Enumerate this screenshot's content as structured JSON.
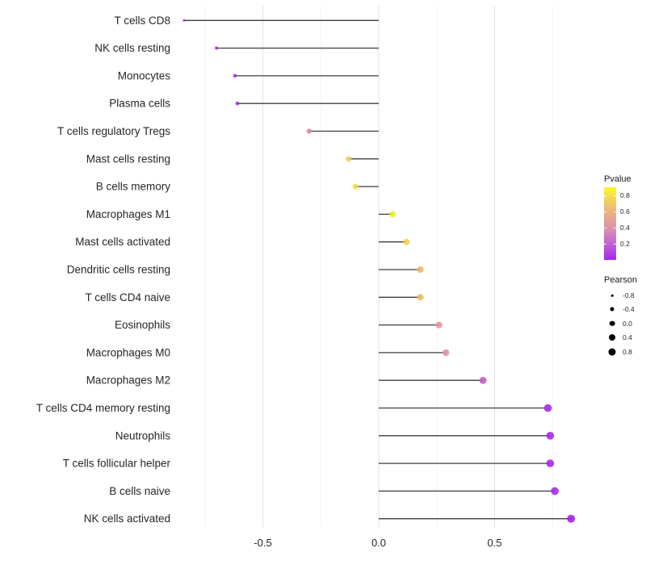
{
  "chart_data": {
    "type": "scatter",
    "subtype": "lollipop",
    "orientation": "horizontal",
    "title": "",
    "xlabel": "",
    "ylabel": "",
    "xlim": [
      -0.875,
      0.89
    ],
    "x_major_ticks": [
      -0.5,
      0.0,
      0.5
    ],
    "x_tick_labels": [
      "-0.5",
      "0.0",
      "0.5"
    ],
    "x_minor_gridlines": [
      -0.75,
      -0.25,
      0.25,
      0.75
    ],
    "grid": "vertical light-gray gridlines on white, no axis lines, no tick marks",
    "baseline_x": 0.0,
    "points": [
      {
        "label": "T cells CD8",
        "pearson": -0.84,
        "pvalue": 0.03,
        "color": "#9327de"
      },
      {
        "label": "NK cells resting",
        "pearson": -0.7,
        "pvalue": 0.05,
        "color": "#9a2be2"
      },
      {
        "label": "Monocytes",
        "pearson": -0.62,
        "pvalue": 0.06,
        "color": "#9c2ee2"
      },
      {
        "label": "Plasma cells",
        "pearson": -0.61,
        "pvalue": 0.06,
        "color": "#9c2ee2"
      },
      {
        "label": "T cells regulatory  Tregs",
        "pearson": -0.3,
        "pvalue": 0.42,
        "color": "#d9879f"
      },
      {
        "label": "Mast cells resting",
        "pearson": -0.13,
        "pvalue": 0.68,
        "color": "#f0cc55"
      },
      {
        "label": "B cells memory",
        "pearson": -0.1,
        "pvalue": 0.72,
        "color": "#f3d64c"
      },
      {
        "label": "Macrophages M1",
        "pearson": 0.06,
        "pvalue": 0.88,
        "color": "#f2ec16"
      },
      {
        "label": "Mast cells activated",
        "pearson": 0.12,
        "pvalue": 0.7,
        "color": "#f0d14b"
      },
      {
        "label": "Dendritic cells resting",
        "pearson": 0.18,
        "pvalue": 0.58,
        "color": "#ecb763"
      },
      {
        "label": "T cells CD4 naive",
        "pearson": 0.18,
        "pvalue": 0.58,
        "color": "#ecb763"
      },
      {
        "label": "Eosinophils",
        "pearson": 0.26,
        "pvalue": 0.45,
        "color": "#e2939b"
      },
      {
        "label": "Macrophages M0",
        "pearson": 0.29,
        "pvalue": 0.44,
        "color": "#e08f9f"
      },
      {
        "label": "Macrophages M2",
        "pearson": 0.45,
        "pvalue": 0.22,
        "color": "#c45bc8"
      },
      {
        "label": "T cells CD4 memory resting",
        "pearson": 0.73,
        "pvalue": 0.02,
        "color": "#a523ec"
      },
      {
        "label": "Neutrophils",
        "pearson": 0.74,
        "pvalue": 0.02,
        "color": "#a523ec"
      },
      {
        "label": "T cells follicular helper",
        "pearson": 0.74,
        "pvalue": 0.02,
        "color": "#a523ec"
      },
      {
        "label": "B cells naive",
        "pearson": 0.76,
        "pvalue": 0.02,
        "color": "#a523ec"
      },
      {
        "label": "NK cells activated",
        "pearson": 0.83,
        "pvalue": 0.01,
        "color": "#a818ee"
      }
    ],
    "color_legend": {
      "title": "Pvalue",
      "tick_labels": [
        "0.8",
        "0.6",
        "0.4",
        "0.2"
      ],
      "tick_values": [
        0.8,
        0.6,
        0.4,
        0.2
      ],
      "range": [
        0,
        0.9
      ],
      "low_color": "#a328f0",
      "high_color": "#fbf828"
    },
    "size_legend": {
      "title": "Pearson",
      "labels": [
        "-0.8",
        "-0.4",
        "0.0",
        "0.4",
        "0.8"
      ],
      "values": [
        -0.8,
        -0.4,
        0.0,
        0.4,
        0.8
      ]
    },
    "legend_position": "right"
  },
  "styles": {
    "background": "#ffffff",
    "segment_color": "#3d3d3d",
    "gridline_major_color": "#e3e3e3",
    "gridline_minor_color": "#f2f2f2",
    "axis_text_color": "#262626",
    "category_text_color": "#262626",
    "legend_dot_color": "#000000"
  }
}
